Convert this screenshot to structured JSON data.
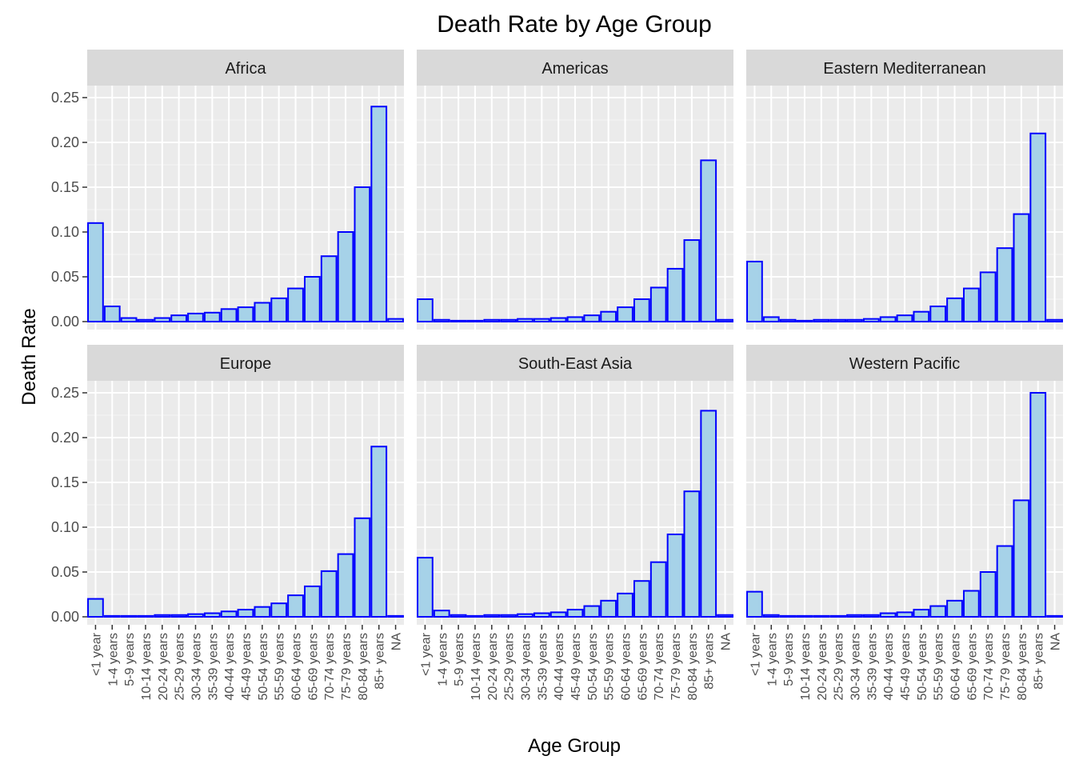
{
  "chart_data": {
    "type": "bar",
    "title": "Death Rate by Age Group",
    "xlabel": "Age Group",
    "ylabel": "Death Rate",
    "ylim": [
      0,
      0.25
    ],
    "yticks": [
      "0.00",
      "0.05",
      "0.10",
      "0.15",
      "0.20",
      "0.25"
    ],
    "categories": [
      "<1 year",
      "1-4 years",
      "5-9 years",
      "10-14 years",
      "20-24 years",
      "25-29 years",
      "30-34 years",
      "35-39 years",
      "40-44 years",
      "45-49 years",
      "50-54 years",
      "55-59 years",
      "60-64 years",
      "65-69 years",
      "70-74 years",
      "75-79 years",
      "80-84 years",
      "85+ years",
      "NA"
    ],
    "grid": true,
    "colors": {
      "bar_fill": "#a6d2e8",
      "bar_stroke": "#0000ff",
      "panel_bg": "#ebebeb",
      "strip_bg": "#d9d9d9"
    },
    "panels": [
      {
        "name": "Africa",
        "values": [
          0.11,
          0.017,
          0.004,
          0.002,
          0.004,
          0.007,
          0.009,
          0.01,
          0.014,
          0.016,
          0.021,
          0.026,
          0.037,
          0.05,
          0.073,
          0.1,
          0.15,
          0.24,
          0.003
        ]
      },
      {
        "name": "Americas",
        "values": [
          0.025,
          0.002,
          0.001,
          0.001,
          0.002,
          0.002,
          0.003,
          0.003,
          0.004,
          0.005,
          0.007,
          0.011,
          0.016,
          0.025,
          0.038,
          0.059,
          0.091,
          0.18,
          0.002
        ]
      },
      {
        "name": "Eastern Mediterranean",
        "values": [
          0.067,
          0.005,
          0.002,
          0.001,
          0.002,
          0.002,
          0.002,
          0.003,
          0.005,
          0.007,
          0.011,
          0.017,
          0.026,
          0.037,
          0.055,
          0.082,
          0.12,
          0.21,
          0.002
        ]
      },
      {
        "name": "Europe",
        "values": [
          0.02,
          0.001,
          0.001,
          0.001,
          0.002,
          0.002,
          0.003,
          0.004,
          0.006,
          0.008,
          0.011,
          0.015,
          0.024,
          0.034,
          0.051,
          0.07,
          0.11,
          0.19,
          0.001
        ]
      },
      {
        "name": "South-East Asia",
        "values": [
          0.066,
          0.007,
          0.002,
          0.001,
          0.002,
          0.002,
          0.003,
          0.004,
          0.005,
          0.008,
          0.012,
          0.018,
          0.026,
          0.04,
          0.061,
          0.092,
          0.14,
          0.23,
          0.002
        ]
      },
      {
        "name": "Western Pacific",
        "values": [
          0.028,
          0.002,
          0.001,
          0.001,
          0.001,
          0.001,
          0.002,
          0.002,
          0.004,
          0.005,
          0.008,
          0.012,
          0.018,
          0.029,
          0.05,
          0.079,
          0.13,
          0.25,
          0.001
        ]
      }
    ]
  }
}
